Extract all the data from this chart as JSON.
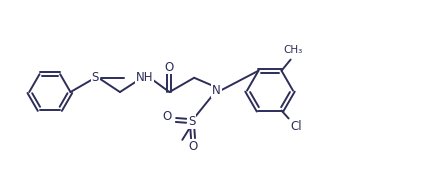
{
  "bg_color": "#ffffff",
  "line_color": "#2d2d5a",
  "line_width": 1.4,
  "font_size": 8.5,
  "fig_width": 4.29,
  "fig_height": 1.96,
  "dpi": 100,
  "xlim": [
    0,
    10.5
  ],
  "ylim": [
    0,
    4.8
  ]
}
